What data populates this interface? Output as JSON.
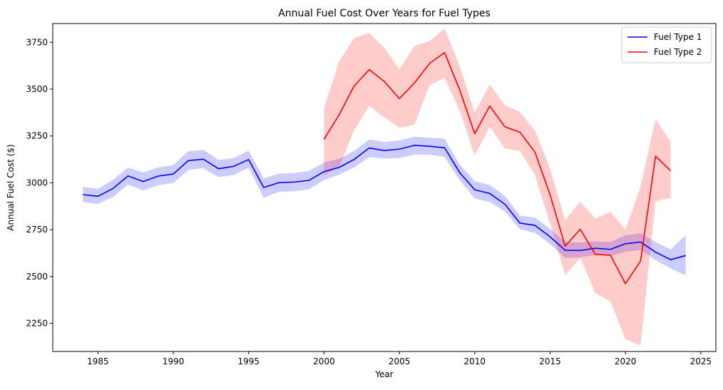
{
  "chart_data": {
    "type": "line",
    "title": "Annual Fuel Cost Over Years for Fuel Types",
    "xlabel": "Year",
    "ylabel": "Annual Fuel Cost ($)",
    "xlim": [
      1982,
      2026
    ],
    "ylim": [
      2100,
      3850
    ],
    "xticks": [
      1985,
      1990,
      1995,
      2000,
      2005,
      2010,
      2015,
      2020,
      2025
    ],
    "yticks": [
      2250,
      2500,
      2750,
      3000,
      3250,
      3500,
      3750
    ],
    "grid": false,
    "legend_position": "top-right",
    "series": [
      {
        "name": "Fuel Type 1",
        "color": "#0000ff",
        "band_color": "#0000ff",
        "x": [
          1984,
          1985,
          1986,
          1987,
          1988,
          1989,
          1990,
          1991,
          1992,
          1993,
          1994,
          1995,
          1996,
          1997,
          1998,
          1999,
          2000,
          2001,
          2002,
          2003,
          2004,
          2005,
          2006,
          2007,
          2008,
          2009,
          2010,
          2011,
          2012,
          2013,
          2014,
          2015,
          2016,
          2017,
          2018,
          2019,
          2020,
          2021,
          2022,
          2023,
          2024
        ],
        "y": [
          2937,
          2928,
          2970,
          3037,
          3007,
          3036,
          3047,
          3119,
          3126,
          3075,
          3088,
          3124,
          2975,
          3001,
          3004,
          3013,
          3060,
          3082,
          3125,
          3186,
          3172,
          3180,
          3200,
          3195,
          3187,
          3055,
          2963,
          2943,
          2886,
          2785,
          2773,
          2712,
          2640,
          2639,
          2651,
          2645,
          2675,
          2684,
          2630,
          2590,
          2612
        ],
        "lower": [
          2897,
          2887,
          2925,
          2990,
          2960,
          2987,
          3000,
          3068,
          3078,
          3030,
          3042,
          3080,
          2920,
          2952,
          2956,
          2965,
          3015,
          3043,
          3082,
          3137,
          3130,
          3132,
          3151,
          3150,
          3138,
          3013,
          2917,
          2897,
          2847,
          2752,
          2733,
          2674,
          2600,
          2602,
          2616,
          2610,
          2632,
          2642,
          2588,
          2543,
          2505
        ],
        "upper": [
          2978,
          2968,
          3016,
          3082,
          3055,
          3083,
          3095,
          3169,
          3176,
          3122,
          3132,
          3172,
          3024,
          3049,
          3052,
          3063,
          3108,
          3128,
          3170,
          3232,
          3217,
          3226,
          3246,
          3241,
          3235,
          3098,
          3009,
          2988,
          2930,
          2825,
          2815,
          2754,
          2684,
          2682,
          2688,
          2684,
          2720,
          2731,
          2684,
          2644,
          2720
        ]
      },
      {
        "name": "Fuel Type 2",
        "color": "#ff0000",
        "band_color": "#ff0000",
        "x": [
          2000,
          2001,
          2002,
          2003,
          2004,
          2005,
          2006,
          2007,
          2008,
          2009,
          2010,
          2011,
          2012,
          2013,
          2014,
          2015,
          2016,
          2017,
          2018,
          2019,
          2020,
          2021,
          2022,
          2023
        ],
        "y": [
          3232,
          3363,
          3517,
          3604,
          3541,
          3449,
          3533,
          3637,
          3695,
          3496,
          3262,
          3410,
          3299,
          3270,
          3163,
          2936,
          2662,
          2752,
          2618,
          2614,
          2462,
          2582,
          3142,
          3064
        ],
        "lower": [
          3040,
          3085,
          3280,
          3410,
          3350,
          3293,
          3310,
          3520,
          3560,
          3385,
          3147,
          3300,
          3183,
          3170,
          3040,
          2780,
          2508,
          2600,
          2412,
          2368,
          2165,
          2131,
          2902,
          2920
        ],
        "upper": [
          3400,
          3650,
          3772,
          3800,
          3720,
          3605,
          3730,
          3757,
          3823,
          3625,
          3376,
          3525,
          3413,
          3378,
          3280,
          3075,
          2800,
          2900,
          2808,
          2845,
          2750,
          2980,
          3340,
          3218
        ]
      }
    ]
  }
}
